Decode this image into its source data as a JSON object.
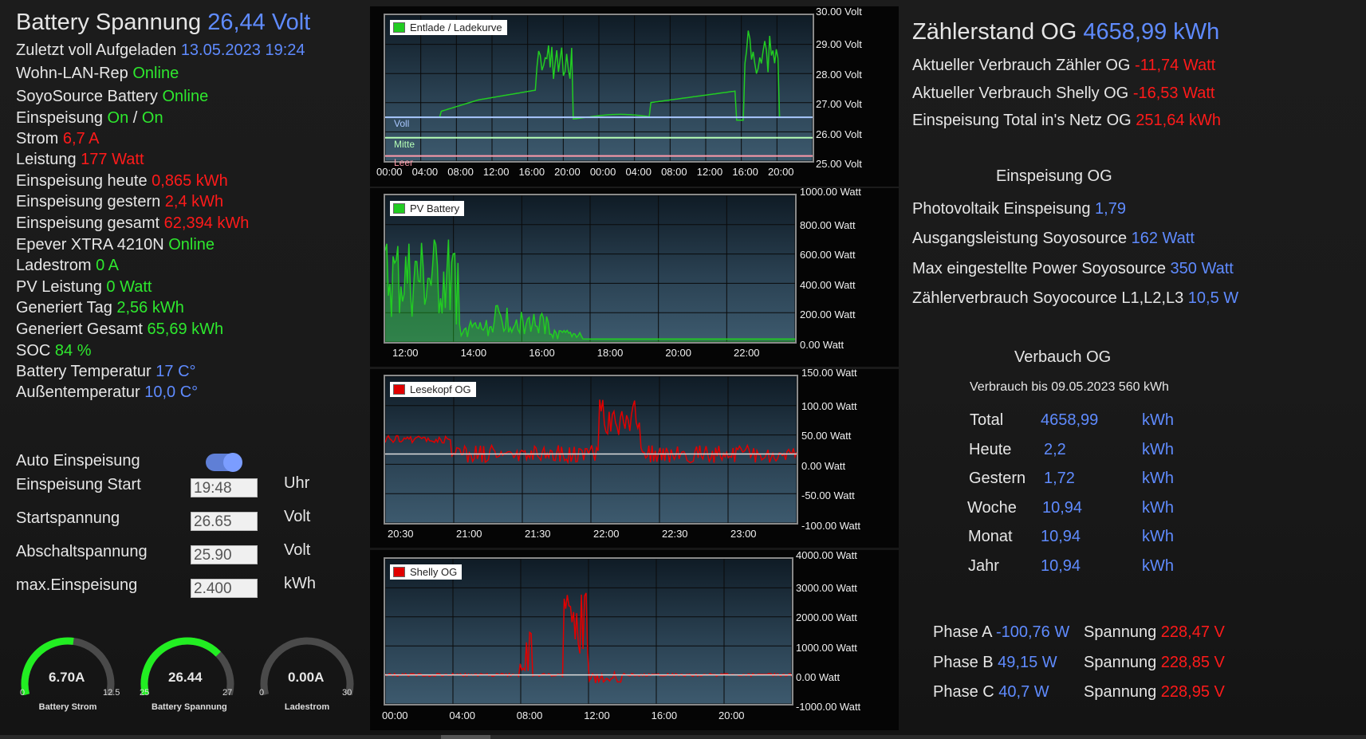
{
  "left": {
    "title_label": "Battery Spannung",
    "title_value": "26,44 Volt",
    "rows": [
      {
        "label": "Zuletzt voll Aufgeladen",
        "value": "13.05.2023 19:24",
        "unit": "",
        "vcolor": "b"
      },
      {
        "label": "Wohn-LAN-Rep",
        "value": "Online",
        "unit": "",
        "vcolor": "g"
      },
      {
        "label": "SoyoSource Battery",
        "value": "Online",
        "unit": "",
        "vcolor": "g"
      },
      {
        "label": "Einspeisung",
        "value": "On",
        "sep": "/",
        "value2": "On",
        "unit": "",
        "vcolor": "g"
      },
      {
        "label": "Strom",
        "value": "6,7",
        "unit": "A",
        "vcolor": "r"
      },
      {
        "label": "Leistung",
        "value": "177",
        "unit": "Watt",
        "vcolor": "r"
      },
      {
        "label": "Einspeisung heute",
        "value": "0,865",
        "unit": "kWh",
        "vcolor": "r"
      },
      {
        "label": "Einspeisung gestern",
        "value": "2,4",
        "unit": "kWh",
        "vcolor": "r"
      },
      {
        "label": "Einspeisung gesamt",
        "value": "62,394",
        "unit": "kWh",
        "vcolor": "r"
      },
      {
        "label": "Epever XTRA 4210N",
        "value": "Online",
        "unit": "",
        "vcolor": "g"
      },
      {
        "label": "Ladestrom",
        "value": "0",
        "unit": "A",
        "vcolor": "g"
      },
      {
        "label": "PV Leistung",
        "value": "0",
        "unit": "Watt",
        "vcolor": "g"
      },
      {
        "label": "Generiert Tag",
        "value": "2,56",
        "unit": "kWh",
        "vcolor": "g"
      },
      {
        "label": "Generiert Gesamt",
        "value": "65,69",
        "unit": "kWh",
        "vcolor": "g"
      },
      {
        "label": "SOC",
        "value": "84",
        "unit": "%",
        "vcolor": "g"
      },
      {
        "label": "Battery Temperatur",
        "value": "17",
        "unit": "C°",
        "vcolor": "b"
      },
      {
        "label": "Außentemperatur",
        "value": "10,0",
        "unit": "C°",
        "vcolor": "b"
      }
    ],
    "auto_label": "Auto Einspeisung",
    "settings": [
      {
        "label": "Einspeisung Start",
        "value": "19:48",
        "unit": "Uhr"
      },
      {
        "label": "Startspannung",
        "value": "26.65",
        "unit": "Volt"
      },
      {
        "label": "Abschaltspannung",
        "value": "25.90",
        "unit": "Volt"
      },
      {
        "label": "max.Einspeisung",
        "value": "2.400",
        "unit": "kWh"
      }
    ],
    "gauges": [
      {
        "value": "6.70A",
        "min": "0",
        "max": "12.5",
        "label": "Battery Strom",
        "fraction": 0.536
      },
      {
        "value": "26.44",
        "min": "25",
        "max": "27",
        "label": "Battery Spannung",
        "fraction": 0.72
      },
      {
        "value": "0.00A",
        "min": "0",
        "max": "30",
        "label": "Ladestrom",
        "fraction": 0.0
      }
    ]
  },
  "charts": {
    "c1": {
      "legend": "Entlade / Ladekurve",
      "color": "#22cc22",
      "y_ticks": [
        "30.00 Volt",
        "29.00 Volt",
        "28.00 Volt",
        "27.00 Volt",
        "26.00 Volt",
        "25.00 Volt"
      ],
      "x_ticks": [
        "00:00",
        "04:00",
        "08:00",
        "12:00",
        "16:00",
        "20:00",
        "00:00",
        "04:00",
        "08:00",
        "12:00",
        "16:00",
        "20:00"
      ],
      "markers": [
        "Voll",
        "Mitte",
        "Leer"
      ]
    },
    "c2": {
      "legend": "PV Battery",
      "color": "#22cc22",
      "y_ticks": [
        "1000.00 Watt",
        "800.00 Watt",
        "600.00 Watt",
        "400.00 Watt",
        "200.00 Watt",
        "0.00 Watt"
      ],
      "x_ticks": [
        "12:00",
        "14:00",
        "16:00",
        "18:00",
        "20:00",
        "22:00"
      ]
    },
    "c3": {
      "legend": "Lesekopf OG",
      "color": "#e00000",
      "y_ticks": [
        "150.00 Watt",
        "100.00 Watt",
        "50.00 Watt",
        "0.00 Watt",
        "-50.00 Watt",
        "-100.00 Watt"
      ],
      "x_ticks": [
        "20:30",
        "21:00",
        "21:30",
        "22:00",
        "22:30",
        "23:00"
      ]
    },
    "c4": {
      "legend": "Shelly OG",
      "color": "#e00000",
      "y_ticks": [
        "4000.00 Watt",
        "3000.00 Watt",
        "2000.00 Watt",
        "1000.00 Watt",
        "0.00 Watt",
        "-1000.00 Watt"
      ],
      "x_ticks": [
        "00:00",
        "04:00",
        "08:00",
        "12:00",
        "16:00",
        "20:00"
      ]
    }
  },
  "right": {
    "title_label": "Zählerstand OG",
    "title_value": "4658,99",
    "title_unit": "kWh",
    "rows": [
      {
        "label": "Aktueller Verbrauch Zähler OG",
        "value": "-11,74",
        "unit": "Watt",
        "vcolor": "r"
      },
      {
        "label": "Aktueller Verbrauch Shelly OG",
        "value": "-16,53",
        "unit": "Watt",
        "vcolor": "r"
      },
      {
        "label": "Einspeisung Total in's Netz OG",
        "value": "251,64",
        "unit": "kWh",
        "vcolor": "r"
      }
    ],
    "section1": "Einspeisung OG",
    "rows2": [
      {
        "label": "Photovoltaik Einspeisung",
        "value": "1,79"
      },
      {
        "label": "Ausgangsleistung Soyosource",
        "value": "162 Watt"
      },
      {
        "label": "Max eingestellte Power Soyosource",
        "value": "350 Watt"
      },
      {
        "label": "Zählerverbrauch Soyocource L1,L2,L3",
        "value": "10,5 W"
      }
    ],
    "section2": "Verbauch OG",
    "note": "Verbrauch bis 09.05.2023 560 kWh",
    "table": [
      {
        "label": "Total",
        "value": "4658,99",
        "unit": "kWh"
      },
      {
        "label": "Heute",
        "value": "2,2",
        "unit": "kWh"
      },
      {
        "label": "Gestern",
        "value": "1,72",
        "unit": "kWh"
      },
      {
        "label": "Woche",
        "value": "10,94",
        "unit": "kWh"
      },
      {
        "label": "Monat",
        "value": "10,94",
        "unit": "kWh"
      },
      {
        "label": "Jahr",
        "value": "10,94",
        "unit": "kWh"
      }
    ],
    "phases": [
      {
        "label": "Phase A",
        "power": "-100,76 W",
        "slabel": "Spannung",
        "volt": "228,47 V"
      },
      {
        "label": "Phase B",
        "power": "49,15 W",
        "slabel": "Spannung",
        "volt": "228,85 V"
      },
      {
        "label": "Phase C",
        "power": "40,7 W",
        "slabel": "Spannung",
        "volt": "228,95 V"
      }
    ]
  }
}
